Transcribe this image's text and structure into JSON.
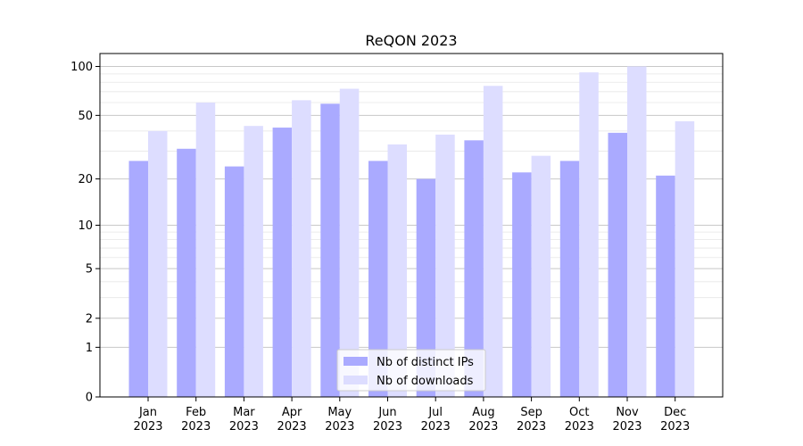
{
  "chart_data": {
    "type": "bar",
    "title": "ReQON 2023",
    "xlabel": "",
    "ylabel": "",
    "y_scale": "symlog",
    "ylim": [
      0,
      120
    ],
    "y_ticks": [
      0,
      1,
      2,
      5,
      10,
      20,
      50,
      100
    ],
    "grid": "horizontal",
    "legend_placement": "lower center",
    "categories": [
      {
        "month": "Jan",
        "year": "2023"
      },
      {
        "month": "Feb",
        "year": "2023"
      },
      {
        "month": "Mar",
        "year": "2023"
      },
      {
        "month": "Apr",
        "year": "2023"
      },
      {
        "month": "May",
        "year": "2023"
      },
      {
        "month": "Jun",
        "year": "2023"
      },
      {
        "month": "Jul",
        "year": "2023"
      },
      {
        "month": "Aug",
        "year": "2023"
      },
      {
        "month": "Sep",
        "year": "2023"
      },
      {
        "month": "Oct",
        "year": "2023"
      },
      {
        "month": "Nov",
        "year": "2023"
      },
      {
        "month": "Dec",
        "year": "2023"
      }
    ],
    "series": [
      {
        "name": "Nb of distinct IPs",
        "color": "#aaaaff",
        "values": [
          26,
          31,
          24,
          42,
          59,
          26,
          20,
          35,
          22,
          26,
          39,
          21
        ]
      },
      {
        "name": "Nb of downloads",
        "color": "#ddddff",
        "values": [
          40,
          60,
          43,
          62,
          73,
          33,
          38,
          76,
          28,
          92,
          100,
          46
        ]
      }
    ]
  }
}
